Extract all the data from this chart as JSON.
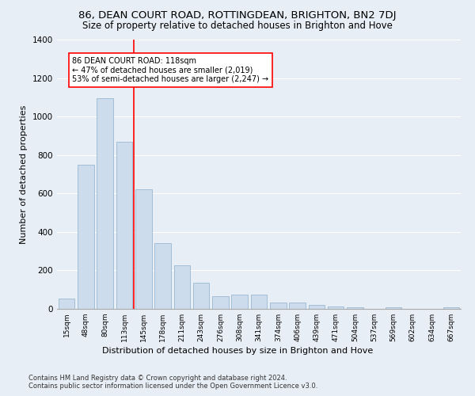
{
  "title": "86, DEAN COURT ROAD, ROTTINGDEAN, BRIGHTON, BN2 7DJ",
  "subtitle": "Size of property relative to detached houses in Brighton and Hove",
  "xlabel": "Distribution of detached houses by size in Brighton and Hove",
  "ylabel": "Number of detached properties",
  "categories": [
    "15sqm",
    "48sqm",
    "80sqm",
    "113sqm",
    "145sqm",
    "178sqm",
    "211sqm",
    "243sqm",
    "276sqm",
    "308sqm",
    "341sqm",
    "374sqm",
    "406sqm",
    "439sqm",
    "471sqm",
    "504sqm",
    "537sqm",
    "569sqm",
    "602sqm",
    "634sqm",
    "667sqm"
  ],
  "values": [
    55,
    750,
    1095,
    870,
    620,
    340,
    225,
    135,
    65,
    75,
    75,
    35,
    35,
    22,
    13,
    8,
    0,
    10,
    0,
    0,
    10
  ],
  "bar_color": "#ccdcec",
  "bar_edge_color": "#9ab8d0",
  "reference_line_color": "red",
  "annotation_text": "86 DEAN COURT ROAD: 118sqm\n← 47% of detached houses are smaller (2,019)\n53% of semi-detached houses are larger (2,247) →",
  "annotation_box_color": "white",
  "annotation_box_edge_color": "red",
  "ylim": [
    0,
    1400
  ],
  "yticks": [
    0,
    200,
    400,
    600,
    800,
    1000,
    1200,
    1400
  ],
  "footnote1": "Contains HM Land Registry data © Crown copyright and database right 2024.",
  "footnote2": "Contains public sector information licensed under the Open Government Licence v3.0.",
  "bg_color": "#e8eef5",
  "plot_bg_color": "#e8eef5",
  "title_fontsize": 9.5,
  "subtitle_fontsize": 8.5,
  "xlabel_fontsize": 8,
  "ylabel_fontsize": 8
}
